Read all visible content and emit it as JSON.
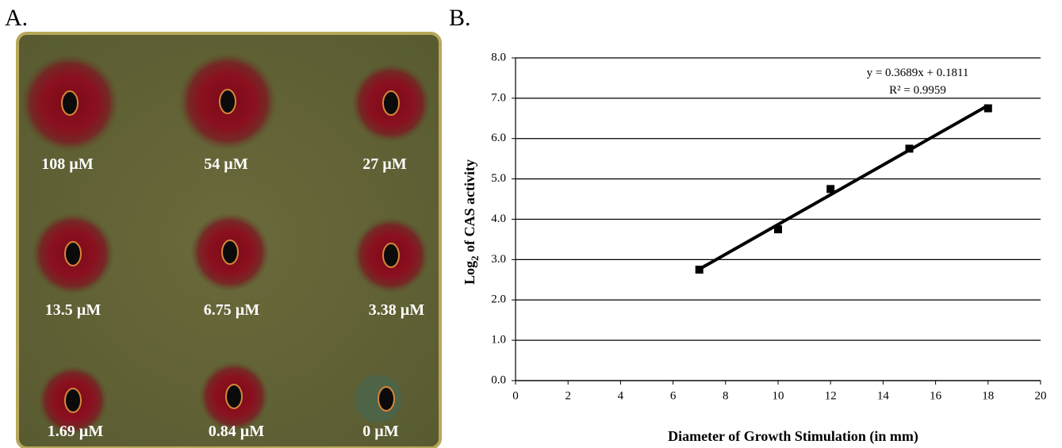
{
  "panel_a": {
    "label": "A.",
    "plate_labels": [
      "108 µM",
      "54 µM",
      "27 µM",
      "13.5 µM",
      "6.75 µM",
      "3.38 µM",
      "1.69 µM",
      "0.84 µM",
      "0 µM"
    ]
  },
  "chart_data": {
    "type": "scatter",
    "panel_label": "B.",
    "xlabel": "Diameter of Growth Stimulation (in mm)",
    "ylabel": {
      "text": "Log",
      "subscript": "2",
      "rest": " of CAS activity"
    },
    "x": [
      7,
      10,
      12,
      15,
      18
    ],
    "values": [
      2.75,
      3.75,
      4.75,
      5.75,
      6.75
    ],
    "color": "#000000",
    "trendline": {
      "slope": 0.3689,
      "intercept": 0.1811,
      "equation": "y = 0.3689x + 0.1811",
      "r_squared": "R² = 0.9959"
    },
    "xlim": [
      0,
      20
    ],
    "xticks": [
      0,
      2,
      4,
      6,
      8,
      10,
      12,
      14,
      16,
      18,
      20
    ],
    "ylim": [
      0,
      8
    ],
    "yticks": [
      {
        "value": 0,
        "label": "0.0"
      },
      {
        "value": 1,
        "label": "1.0"
      },
      {
        "value": 2,
        "label": "2.0"
      },
      {
        "value": 3,
        "label": "3.0"
      },
      {
        "value": 4,
        "label": "4.0"
      },
      {
        "value": 5,
        "label": "5.0"
      },
      {
        "value": 6,
        "label": "6.0"
      },
      {
        "value": 7,
        "label": "7.0"
      },
      {
        "value": 8,
        "label": "8.0"
      }
    ],
    "grid": true
  }
}
